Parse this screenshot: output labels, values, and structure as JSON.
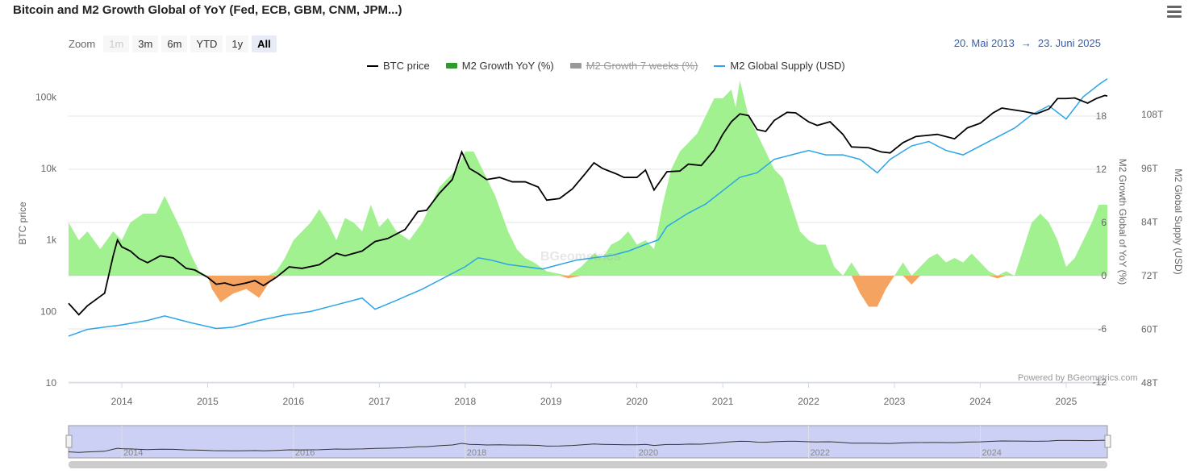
{
  "header": {
    "title": "Bitcoin and M2 Growth Global of YoY (Fed, ECB, GBM, CNM, JPM...)",
    "menu_icon": "hamburger-icon"
  },
  "zoom": {
    "label": "Zoom",
    "buttons": [
      {
        "label": "1m",
        "state": "disabled"
      },
      {
        "label": "3m",
        "state": "normal"
      },
      {
        "label": "6m",
        "state": "normal"
      },
      {
        "label": "YTD",
        "state": "normal"
      },
      {
        "label": "1y",
        "state": "normal"
      },
      {
        "label": "All",
        "state": "active"
      }
    ]
  },
  "range": {
    "from": "20. Mai 2013",
    "arrow": "→",
    "to": "23. Juni 2025"
  },
  "credits": "Powered by BGeometrics.com",
  "watermark": "BGeometrics",
  "colors": {
    "btc": "#000000",
    "m2_supply": "#2ba4e8",
    "growth_pos": "#90ee7e",
    "growth_neg": "#f4a460",
    "grid": "#e6e6e6",
    "navigator_bg": "#ccd0f5",
    "accent": "#335cad"
  },
  "chart_data": {
    "type": "line",
    "x_axis": {
      "type": "datetime",
      "range": [
        "2013-05-20",
        "2025-06-23"
      ],
      "tick_labels": [
        "2014",
        "2015",
        "2016",
        "2017",
        "2018",
        "2019",
        "2020",
        "2021",
        "2022",
        "2023",
        "2024",
        "2025"
      ]
    },
    "y_axes": [
      {
        "id": "btc",
        "title": "BTC price",
        "scale": "log",
        "range": [
          10,
          300000
        ],
        "tick_labels": [
          "10",
          "100",
          "1k",
          "10k",
          "100k"
        ]
      },
      {
        "id": "growth",
        "title": "M2 Growth Global of YoY (%)",
        "range": [
          -12,
          18
        ],
        "tick_labels": [
          "-12",
          "-6",
          "0",
          "6",
          "12",
          "18"
        ]
      },
      {
        "id": "supply",
        "title": "M2 Global Supply (USD)",
        "range": [
          48,
          108
        ],
        "tick_labels": [
          "48T",
          "60T",
          "72T",
          "84T",
          "96T",
          "108T"
        ]
      }
    ],
    "legend": {
      "placement": "top-center",
      "items": [
        {
          "name": "BTC price",
          "kind": "line",
          "color": "#000000",
          "visible": true
        },
        {
          "name": "M2 Growth YoY (%)",
          "kind": "area",
          "color": "#2e9a2e",
          "visible": true
        },
        {
          "name": "M2 Growth 7 weeks (%)",
          "kind": "line",
          "color": "#999999",
          "visible": false
        },
        {
          "name": "M2 Global Supply (USD)",
          "kind": "line",
          "color": "#2ba4e8",
          "visible": true
        }
      ]
    },
    "series": [
      {
        "name": "BTC price",
        "axis": "btc",
        "points": [
          [
            2013.38,
            130
          ],
          [
            2013.5,
            90
          ],
          [
            2013.6,
            120
          ],
          [
            2013.8,
            180
          ],
          [
            2013.9,
            600
          ],
          [
            2013.95,
            1000
          ],
          [
            2014.0,
            800
          ],
          [
            2014.1,
            700
          ],
          [
            2014.2,
            550
          ],
          [
            2014.3,
            480
          ],
          [
            2014.45,
            600
          ],
          [
            2014.6,
            560
          ],
          [
            2014.75,
            400
          ],
          [
            2014.85,
            380
          ],
          [
            2015.0,
            300
          ],
          [
            2015.1,
            240
          ],
          [
            2015.2,
            250
          ],
          [
            2015.3,
            230
          ],
          [
            2015.45,
            250
          ],
          [
            2015.55,
            270
          ],
          [
            2015.65,
            230
          ],
          [
            2015.8,
            300
          ],
          [
            2015.95,
            420
          ],
          [
            2016.1,
            400
          ],
          [
            2016.3,
            450
          ],
          [
            2016.5,
            650
          ],
          [
            2016.6,
            600
          ],
          [
            2016.8,
            700
          ],
          [
            2016.95,
            950
          ],
          [
            2017.1,
            1050
          ],
          [
            2017.3,
            1400
          ],
          [
            2017.45,
            2500
          ],
          [
            2017.55,
            2600
          ],
          [
            2017.7,
            4500
          ],
          [
            2017.85,
            7000
          ],
          [
            2017.96,
            17000
          ],
          [
            2018.05,
            10000
          ],
          [
            2018.15,
            8500
          ],
          [
            2018.25,
            7000
          ],
          [
            2018.4,
            7500
          ],
          [
            2018.55,
            6500
          ],
          [
            2018.7,
            6500
          ],
          [
            2018.85,
            5500
          ],
          [
            2018.95,
            3600
          ],
          [
            2019.1,
            3800
          ],
          [
            2019.25,
            5200
          ],
          [
            2019.4,
            8500
          ],
          [
            2019.5,
            12000
          ],
          [
            2019.6,
            10000
          ],
          [
            2019.75,
            8500
          ],
          [
            2019.85,
            7500
          ],
          [
            2020.0,
            7500
          ],
          [
            2020.1,
            9500
          ],
          [
            2020.2,
            5000
          ],
          [
            2020.35,
            9000
          ],
          [
            2020.5,
            9200
          ],
          [
            2020.6,
            11500
          ],
          [
            2020.75,
            11000
          ],
          [
            2020.9,
            18000
          ],
          [
            2021.0,
            30000
          ],
          [
            2021.1,
            45000
          ],
          [
            2021.2,
            58000
          ],
          [
            2021.3,
            55000
          ],
          [
            2021.4,
            35000
          ],
          [
            2021.5,
            33000
          ],
          [
            2021.6,
            47000
          ],
          [
            2021.75,
            61000
          ],
          [
            2021.85,
            60000
          ],
          [
            2022.0,
            45000
          ],
          [
            2022.1,
            40000
          ],
          [
            2022.25,
            45000
          ],
          [
            2022.4,
            30000
          ],
          [
            2022.5,
            20000
          ],
          [
            2022.7,
            19500
          ],
          [
            2022.85,
            17000
          ],
          [
            2022.95,
            16500
          ],
          [
            2023.1,
            23000
          ],
          [
            2023.25,
            28000
          ],
          [
            2023.5,
            30000
          ],
          [
            2023.7,
            26000
          ],
          [
            2023.85,
            37000
          ],
          [
            2024.0,
            43000
          ],
          [
            2024.15,
            60000
          ],
          [
            2024.25,
            70000
          ],
          [
            2024.5,
            63000
          ],
          [
            2024.65,
            58000
          ],
          [
            2024.8,
            68000
          ],
          [
            2024.9,
            95000
          ],
          [
            2025.0,
            95000
          ],
          [
            2025.1,
            97000
          ],
          [
            2025.25,
            82000
          ],
          [
            2025.35,
            95000
          ],
          [
            2025.45,
            105000
          ],
          [
            2025.48,
            103000
          ]
        ]
      },
      {
        "name": "M2 Global Supply (USD)",
        "axis": "supply",
        "points": [
          [
            2013.38,
            58.5
          ],
          [
            2013.6,
            60
          ],
          [
            2014.0,
            61
          ],
          [
            2014.3,
            62
          ],
          [
            2014.5,
            63
          ],
          [
            2014.8,
            61.5
          ],
          [
            2015.1,
            60.2
          ],
          [
            2015.3,
            60.5
          ],
          [
            2015.6,
            62
          ],
          [
            2015.9,
            63.2
          ],
          [
            2016.2,
            64
          ],
          [
            2016.5,
            65.5
          ],
          [
            2016.8,
            67
          ],
          [
            2016.95,
            64.5
          ],
          [
            2017.2,
            66.5
          ],
          [
            2017.5,
            69
          ],
          [
            2017.8,
            72
          ],
          [
            2018.0,
            74
          ],
          [
            2018.15,
            76
          ],
          [
            2018.3,
            75.5
          ],
          [
            2018.5,
            74.5
          ],
          [
            2018.7,
            74
          ],
          [
            2018.9,
            73.5
          ],
          [
            2019.1,
            74.5
          ],
          [
            2019.3,
            75.5
          ],
          [
            2019.5,
            76
          ],
          [
            2019.7,
            76.5
          ],
          [
            2019.9,
            77.5
          ],
          [
            2020.1,
            79
          ],
          [
            2020.25,
            80
          ],
          [
            2020.35,
            83
          ],
          [
            2020.6,
            86
          ],
          [
            2020.8,
            88
          ],
          [
            2021.0,
            91
          ],
          [
            2021.2,
            94
          ],
          [
            2021.4,
            95
          ],
          [
            2021.6,
            98
          ],
          [
            2021.8,
            99
          ],
          [
            2022.0,
            100
          ],
          [
            2022.2,
            99
          ],
          [
            2022.4,
            99
          ],
          [
            2022.6,
            98
          ],
          [
            2022.8,
            95
          ],
          [
            2022.95,
            98
          ],
          [
            2023.2,
            101
          ],
          [
            2023.4,
            102
          ],
          [
            2023.6,
            100
          ],
          [
            2023.8,
            99
          ],
          [
            2024.0,
            101
          ],
          [
            2024.2,
            103
          ],
          [
            2024.4,
            105
          ],
          [
            2024.6,
            108
          ],
          [
            2024.8,
            110
          ],
          [
            2025.0,
            107
          ],
          [
            2025.2,
            112
          ],
          [
            2025.4,
            115
          ],
          [
            2025.48,
            116
          ]
        ]
      },
      {
        "name": "M2 Growth YoY (%)",
        "axis": "growth",
        "points": [
          [
            2013.38,
            6
          ],
          [
            2013.5,
            4
          ],
          [
            2013.6,
            5
          ],
          [
            2013.75,
            3
          ],
          [
            2013.9,
            5
          ],
          [
            2014.0,
            4
          ],
          [
            2014.1,
            6
          ],
          [
            2014.25,
            7
          ],
          [
            2014.4,
            7
          ],
          [
            2014.5,
            9
          ],
          [
            2014.6,
            7
          ],
          [
            2014.7,
            5
          ],
          [
            2014.8,
            2.5
          ],
          [
            2014.9,
            0.5
          ],
          [
            2015.0,
            0
          ],
          [
            2015.05,
            -1.5
          ],
          [
            2015.15,
            -3
          ],
          [
            2015.3,
            -2
          ],
          [
            2015.45,
            -1.5
          ],
          [
            2015.6,
            -2.5
          ],
          [
            2015.7,
            -1
          ],
          [
            2015.8,
            0.5
          ],
          [
            2015.9,
            2
          ],
          [
            2016.0,
            4
          ],
          [
            2016.1,
            5
          ],
          [
            2016.2,
            6
          ],
          [
            2016.3,
            7.5
          ],
          [
            2016.4,
            6
          ],
          [
            2016.5,
            4
          ],
          [
            2016.6,
            6.5
          ],
          [
            2016.7,
            6
          ],
          [
            2016.8,
            5
          ],
          [
            2016.9,
            8
          ],
          [
            2017.0,
            5.5
          ],
          [
            2017.1,
            6.5
          ],
          [
            2017.2,
            5
          ],
          [
            2017.35,
            4
          ],
          [
            2017.5,
            6
          ],
          [
            2017.6,
            8
          ],
          [
            2017.7,
            10
          ],
          [
            2017.8,
            11
          ],
          [
            2017.9,
            12
          ],
          [
            2018.0,
            14
          ],
          [
            2018.1,
            14
          ],
          [
            2018.2,
            12
          ],
          [
            2018.35,
            9
          ],
          [
            2018.5,
            5
          ],
          [
            2018.6,
            3
          ],
          [
            2018.7,
            2
          ],
          [
            2018.8,
            1.5
          ],
          [
            2018.95,
            0.5
          ],
          [
            2019.1,
            0.2
          ],
          [
            2019.2,
            -0.3
          ],
          [
            2019.35,
            1
          ],
          [
            2019.5,
            2.5
          ],
          [
            2019.6,
            2
          ],
          [
            2019.7,
            3.5
          ],
          [
            2019.8,
            4
          ],
          [
            2019.9,
            5
          ],
          [
            2020.0,
            3.5
          ],
          [
            2020.1,
            4
          ],
          [
            2020.2,
            3
          ],
          [
            2020.3,
            8
          ],
          [
            2020.4,
            12
          ],
          [
            2020.5,
            14
          ],
          [
            2020.6,
            15
          ],
          [
            2020.7,
            16
          ],
          [
            2020.8,
            18
          ],
          [
            2020.9,
            20
          ],
          [
            2021.0,
            20
          ],
          [
            2021.1,
            21
          ],
          [
            2021.15,
            19
          ],
          [
            2021.2,
            22
          ],
          [
            2021.3,
            18
          ],
          [
            2021.4,
            16
          ],
          [
            2021.5,
            14
          ],
          [
            2021.6,
            12
          ],
          [
            2021.7,
            11
          ],
          [
            2021.8,
            8
          ],
          [
            2021.9,
            5
          ],
          [
            2022.0,
            4
          ],
          [
            2022.1,
            3.5
          ],
          [
            2022.2,
            3.5
          ],
          [
            2022.3,
            1
          ],
          [
            2022.4,
            0
          ],
          [
            2022.5,
            1.5
          ],
          [
            2022.6,
            -2
          ],
          [
            2022.7,
            -3.5
          ],
          [
            2022.8,
            -3.5
          ],
          [
            2022.9,
            -1.5
          ],
          [
            2023.0,
            0
          ],
          [
            2023.1,
            1.5
          ],
          [
            2023.2,
            -1
          ],
          [
            2023.3,
            1
          ],
          [
            2023.4,
            2
          ],
          [
            2023.5,
            2.5
          ],
          [
            2023.6,
            1.5
          ],
          [
            2023.7,
            2
          ],
          [
            2023.8,
            1.5
          ],
          [
            2023.9,
            2.5
          ],
          [
            2024.0,
            1.5
          ],
          [
            2024.1,
            0.5
          ],
          [
            2024.2,
            -0.3
          ],
          [
            2024.3,
            0.5
          ],
          [
            2024.4,
            0
          ],
          [
            2024.5,
            3
          ],
          [
            2024.6,
            6
          ],
          [
            2024.7,
            7
          ],
          [
            2024.8,
            6
          ],
          [
            2024.9,
            4
          ],
          [
            2025.0,
            1
          ],
          [
            2025.1,
            2
          ],
          [
            2025.2,
            4
          ],
          [
            2025.3,
            6
          ],
          [
            2025.38,
            8
          ],
          [
            2025.48,
            8
          ]
        ]
      }
    ],
    "navigator": {
      "tick_labels": [
        "2014",
        "2016",
        "2018",
        "2020",
        "2022",
        "2024"
      ]
    }
  }
}
